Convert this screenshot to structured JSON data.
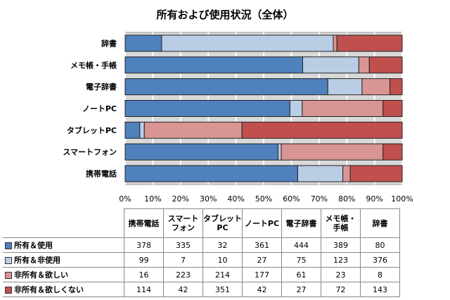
{
  "chart_data": {
    "type": "bar",
    "orientation": "horizontal",
    "stacked": "percent",
    "title": "所有および使用状況（全体）",
    "categories": [
      "携帯電話",
      "スマートフォン",
      "タブレットPC",
      "ノートPC",
      "電子辞書",
      "メモ帳・手帳",
      "辞書"
    ],
    "table_headers": [
      [
        "携帯電話"
      ],
      [
        "スマート",
        "フォン"
      ],
      [
        "タブレット",
        "PC"
      ],
      [
        "ノートPC"
      ],
      [
        "電子辞書"
      ],
      [
        "メモ帳・",
        "手帳"
      ],
      [
        "辞書"
      ]
    ],
    "xticks": [
      "0%",
      "10%",
      "20%",
      "30%",
      "40%",
      "50%",
      "60%",
      "70%",
      "80%",
      "90%",
      "100%"
    ],
    "xlim": [
      0,
      100
    ],
    "grid": true,
    "legend": "table-bottom",
    "series": [
      {
        "name": "所有＆使用",
        "color": "#4f81bd",
        "values": [
          378,
          335,
          32,
          361,
          444,
          389,
          80
        ]
      },
      {
        "name": "所有＆非使用",
        "color": "#b9cde5",
        "values": [
          99,
          7,
          10,
          27,
          75,
          123,
          376
        ]
      },
      {
        "name": "非所有＆欲しい",
        "color": "#d99594",
        "values": [
          16,
          223,
          214,
          177,
          61,
          23,
          8
        ]
      },
      {
        "name": "非所有＆欲しくない",
        "color": "#c0504d",
        "values": [
          114,
          42,
          351,
          42,
          27,
          72,
          143
        ]
      }
    ]
  }
}
